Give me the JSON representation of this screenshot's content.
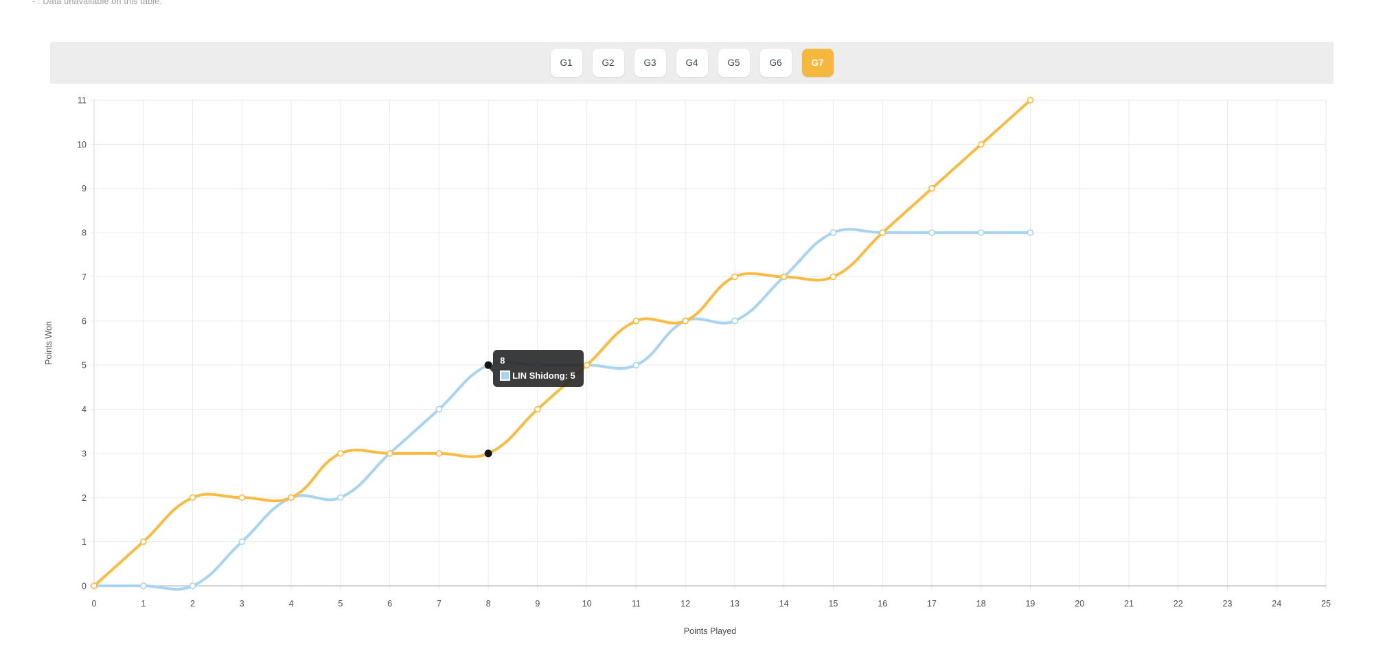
{
  "note": "- : Data unavailable on this table.",
  "tabs": {
    "items": [
      "G1",
      "G2",
      "G3",
      "G4",
      "G5",
      "G6",
      "G7"
    ],
    "active": "G7",
    "active_color": "#F5B83C"
  },
  "chart_data": {
    "type": "line",
    "title": "",
    "xlabel": "Points Played",
    "ylabel": "Points Won",
    "xlim": [
      0,
      25
    ],
    "ylim": [
      0,
      11
    ],
    "x_tick_step": 1,
    "y_tick_step": 1,
    "grid": true,
    "legend": "none",
    "x": [
      0,
      1,
      2,
      3,
      4,
      5,
      6,
      7,
      8,
      9,
      10,
      11,
      12,
      13,
      14,
      15,
      16,
      17,
      18,
      19
    ],
    "series": [
      {
        "name": "LIN Shidong",
        "color": "#A8D4F2",
        "values": [
          0,
          0,
          0,
          1,
          2,
          2,
          3,
          4,
          5,
          5,
          5,
          5,
          6,
          6,
          7,
          8,
          8,
          8,
          8,
          8
        ]
      },
      {
        "name": "",
        "color": "#F9BB42",
        "values": [
          0,
          1,
          2,
          2,
          2,
          3,
          3,
          3,
          3,
          4,
          5,
          6,
          6,
          7,
          7,
          7,
          8,
          9,
          10,
          11
        ]
      }
    ],
    "tooltip": {
      "title": "8",
      "label": "LIN Shidong: 5",
      "swatch_color": "#A8D4F2",
      "point": {
        "x": 8,
        "y": 5
      }
    },
    "active_points": [
      {
        "x": 8,
        "y": 5
      },
      {
        "x": 8,
        "y": 3
      }
    ],
    "colors": {
      "grid": "#eaeaea",
      "x_zero_line": "#d6d6d6",
      "y_zero_line": "#ababab",
      "tick_text": "#4c4c4c"
    }
  }
}
